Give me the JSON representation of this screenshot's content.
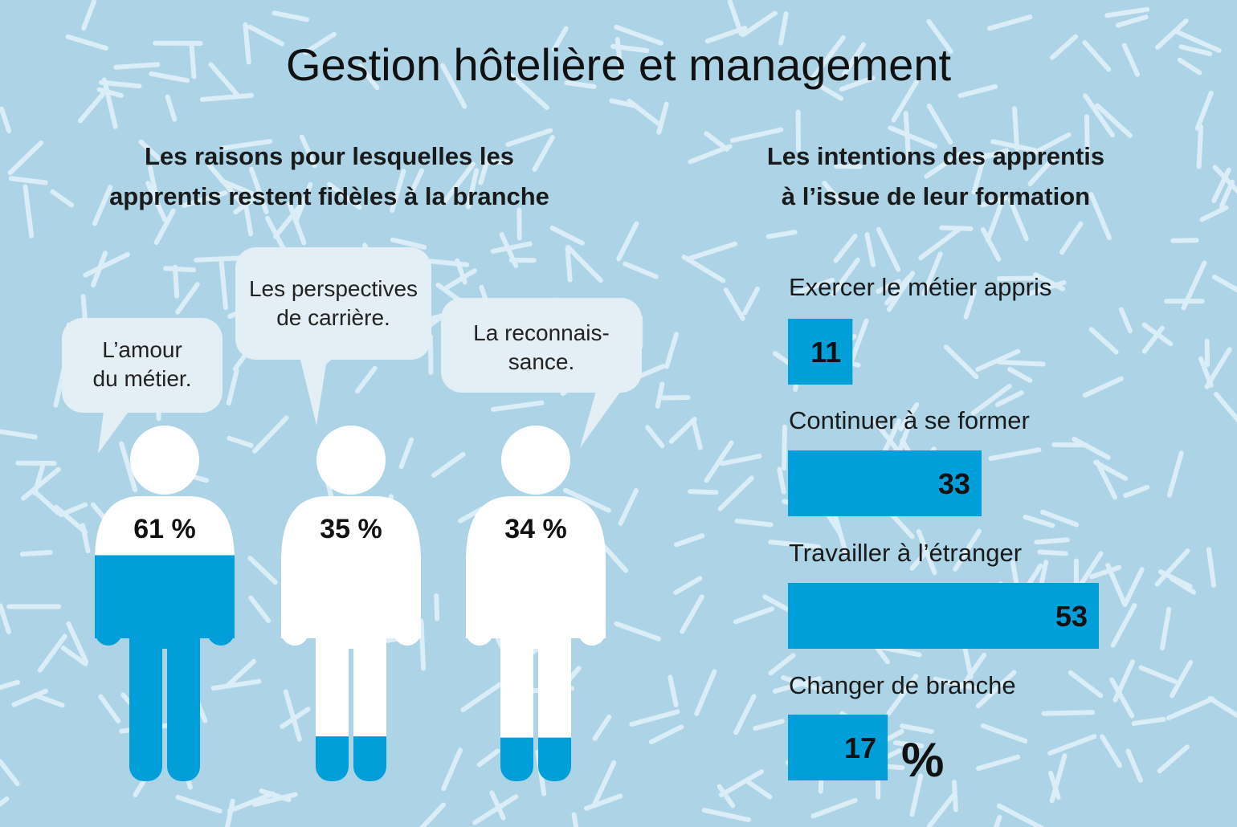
{
  "title": "Gestion hôtelière et management",
  "left": {
    "subtitle_line1": "Les raisons pour lesquelles les",
    "subtitle_line2": "apprentis restent fidèles à la branche"
  },
  "right": {
    "subtitle_line1": "Les intentions des apprentis",
    "subtitle_line2": "à l’issue de leur formation"
  },
  "bubbles": [
    {
      "line1": "L’amour",
      "line2": "du métier."
    },
    {
      "line1": "Les perspectives",
      "line2": "de carrière."
    },
    {
      "line1": "La reconnais-",
      "line2": "sance."
    }
  ],
  "unit_symbol": "%",
  "colors": {
    "background": "#acd4e6",
    "accent": "#009fd9",
    "figure": "#ffffff",
    "bubble": "#e4eff5"
  },
  "chart_data": [
    {
      "type": "bar",
      "categories": [
        "L’amour du métier.",
        "Les perspectives de carrière.",
        "La reconnaissance."
      ],
      "values": [
        61,
        35,
        34
      ],
      "labels": [
        "61 %",
        "35 %",
        "34 %"
      ]
    },
    {
      "type": "bar",
      "orientation": "horizontal",
      "categories": [
        "Exercer le métier appris",
        "Continuer à se former",
        "Travailler à l’étranger",
        "Changer de branche"
      ],
      "values": [
        11,
        33,
        53,
        17
      ]
    }
  ]
}
